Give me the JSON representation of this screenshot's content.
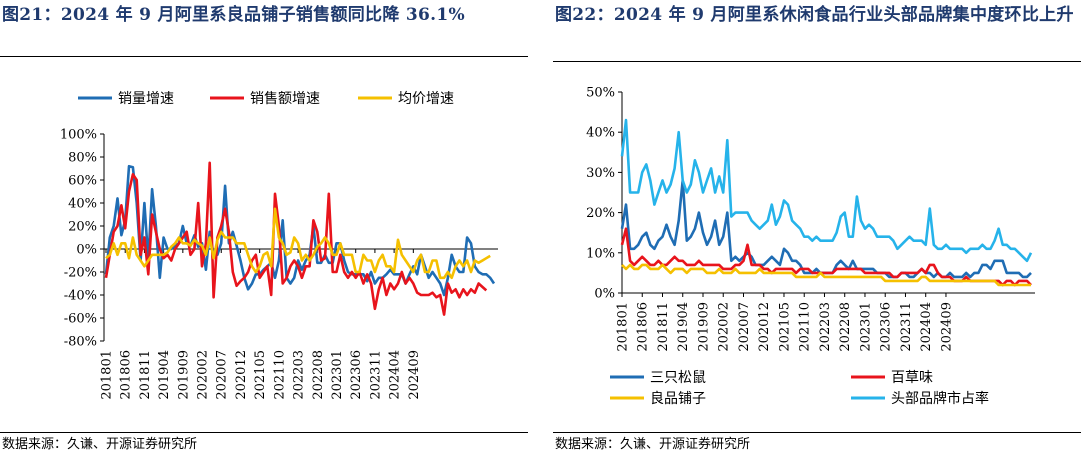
{
  "left": {
    "title": "图21：2024 年 9 月阿里系良品铺子销售额同比降 36.1%",
    "source": "数据来源：久谦、开源证券研究所"
  },
  "right": {
    "title": "图22：2024 年 9 月阿里系休闲食品行业头部品牌集中度环比上升",
    "source": "数据来源：久谦、开源证券研究所"
  },
  "colors": {
    "blue_dark": "#1f6db4",
    "red": "#e8141c",
    "yellow": "#f5c000",
    "light_blue": "#26b3ea"
  },
  "chart_data": [
    {
      "type": "line",
      "title": "2024 年 9 月阿里系良品铺子销售额同比降 36.1%",
      "x_ticks": [
        "201801",
        "201806",
        "201811",
        "201904",
        "201909",
        "202002",
        "202007",
        "202012",
        "202105",
        "202110",
        "202203",
        "202208",
        "202301",
        "202306",
        "202311",
        "202404",
        "202409"
      ],
      "y_ticks": [
        "100%",
        "80%",
        "60%",
        "40%",
        "20%",
        "0%",
        "-20%",
        "-40%",
        "-60%",
        "-80%"
      ],
      "ylim": [
        -80,
        100
      ],
      "y_unit": "%",
      "x_start": "2018-01",
      "x_end": "2024-09",
      "legend_position": "top",
      "grid": false,
      "series": [
        {
          "name": "销量增速",
          "color": "#1f6db4",
          "values": [
            -22,
            10,
            20,
            44,
            12,
            25,
            72,
            71,
            40,
            -10,
            40,
            -10,
            52,
            20,
            -25,
            10,
            0,
            0,
            3,
            5,
            20,
            5,
            3,
            12,
            2,
            5,
            -18,
            15,
            -5,
            -5,
            5,
            55,
            5,
            15,
            3,
            -10,
            -25,
            -35,
            -30,
            -22,
            -22,
            -18,
            -15,
            -12,
            -25,
            -10,
            25,
            -25,
            -30,
            -25,
            -10,
            -18,
            -10,
            -5,
            20,
            -12,
            -12,
            -5,
            -12,
            -12,
            5,
            5,
            -10,
            -20,
            -22,
            -22,
            -22,
            -22,
            -28,
            -20,
            -30,
            -25,
            -25,
            -22,
            -18,
            -22,
            -22,
            -22,
            -30,
            -22,
            -15,
            -22,
            -5,
            -15,
            -25,
            -20,
            -25,
            -30,
            -40,
            -25,
            -5,
            -15,
            -20,
            -20,
            10,
            5,
            -15,
            -20,
            -22,
            -22,
            -25,
            -30
          ]
        },
        {
          "name": "销售额增速",
          "color": "#e8141c",
          "values": [
            -25,
            -5,
            15,
            20,
            38,
            18,
            50,
            65,
            60,
            -5,
            10,
            -22,
            30,
            15,
            0,
            -8,
            -5,
            -10,
            0,
            5,
            10,
            15,
            -5,
            0,
            40,
            -15,
            5,
            75,
            -42,
            10,
            20,
            35,
            15,
            -20,
            -32,
            -28,
            -25,
            -20,
            -10,
            -5,
            -25,
            -20,
            -15,
            -40,
            48,
            20,
            -30,
            -25,
            -15,
            -10,
            -15,
            -25,
            -15,
            -15,
            25,
            15,
            -10,
            -8,
            48,
            -20,
            -20,
            -5,
            -20,
            -25,
            -20,
            -25,
            -20,
            -30,
            -22,
            -30,
            -52,
            -35,
            -25,
            -40,
            -30,
            -35,
            -30,
            -20,
            -30,
            -25,
            -30,
            -38,
            -40,
            -40,
            -40,
            -38,
            -42,
            -40,
            -57,
            -30,
            -38,
            -35,
            -42,
            -35,
            -40,
            -35,
            -38,
            -30,
            -33,
            -36
          ]
        },
        {
          "name": "均价增速",
          "color": "#f5c000",
          "values": [
            -8,
            -5,
            5,
            -5,
            5,
            5,
            -8,
            10,
            -5,
            -10,
            -15,
            -10,
            -5,
            -5,
            -5,
            -5,
            -3,
            2,
            5,
            10,
            5,
            5,
            3,
            8,
            5,
            3,
            -5,
            10,
            -8,
            8,
            15,
            10,
            10,
            10,
            5,
            5,
            5,
            -5,
            -15,
            -20,
            -15,
            -5,
            -3,
            -15,
            35,
            10,
            5,
            -5,
            -3,
            10,
            5,
            -10,
            -5,
            -10,
            -5,
            2,
            5,
            10,
            5,
            -5,
            -5,
            5,
            -5,
            -5,
            -5,
            -20,
            -20,
            -5,
            -10,
            -10,
            -20,
            -10,
            -5,
            -15,
            -15,
            -20,
            8,
            -5,
            -10,
            -15,
            -20,
            -10,
            -5,
            -20,
            -20,
            -10,
            -10,
            -25,
            -25,
            -20,
            -25,
            -15,
            -10,
            -15,
            -10,
            -20,
            -10,
            -12,
            -10,
            -8,
            -6
          ]
        }
      ]
    },
    {
      "type": "line",
      "title": "2024 年 9 月阿里系休闲食品行业头部品牌集中度环比上升",
      "x_ticks": [
        "201801",
        "201806",
        "201811",
        "201904",
        "201909",
        "202002",
        "202007",
        "202012",
        "202105",
        "202110",
        "202203",
        "202208",
        "202301",
        "202306",
        "202311",
        "202404",
        "202409"
      ],
      "y_ticks": [
        "50%",
        "40%",
        "30%",
        "20%",
        "10%",
        "0%"
      ],
      "ylim": [
        0,
        50
      ],
      "y_unit": "%",
      "x_start": "2018-01",
      "x_end": "2024-09",
      "legend_position": "bottom",
      "grid": false,
      "series": [
        {
          "name": "三只松鼠",
          "color": "#1f6db4",
          "values": [
            16,
            22,
            11,
            11,
            12,
            14,
            15,
            12,
            11,
            13,
            14,
            17,
            14,
            12,
            18,
            28,
            13,
            14,
            16,
            20,
            15,
            12,
            14,
            18,
            12,
            14,
            20,
            8,
            9,
            8,
            9,
            10,
            9,
            7,
            7,
            7,
            8,
            9,
            8,
            7,
            11,
            10,
            8,
            8,
            7,
            5,
            5,
            5,
            6,
            5,
            5,
            5,
            5,
            7,
            8,
            7,
            6,
            8,
            6,
            6,
            6,
            6,
            6,
            5,
            5,
            5,
            4,
            4,
            4,
            5,
            5,
            4,
            4,
            5,
            6,
            5,
            5,
            4,
            5,
            4,
            4,
            5,
            4,
            4,
            4,
            5,
            4,
            5,
            5,
            7,
            7,
            6,
            8,
            8,
            8,
            5,
            5,
            5,
            5,
            4,
            4,
            5
          ]
        },
        {
          "name": "百草味",
          "color": "#e8141c",
          "values": [
            12,
            16,
            8,
            7,
            8,
            9,
            8,
            7,
            7,
            8,
            7,
            7,
            8,
            9,
            8,
            8,
            7,
            7,
            7,
            8,
            7,
            7,
            7,
            7,
            7,
            6,
            6,
            6,
            7,
            7,
            8,
            12,
            7,
            7,
            7,
            6,
            6,
            5,
            6,
            6,
            6,
            6,
            6,
            5,
            6,
            6,
            6,
            5,
            5,
            5,
            5,
            5,
            5,
            6,
            6,
            6,
            6,
            6,
            6,
            6,
            5,
            5,
            5,
            5,
            5,
            5,
            5,
            4,
            4,
            5,
            5,
            5,
            5,
            5,
            6,
            5,
            7,
            7,
            5,
            4,
            4,
            4,
            3,
            3,
            3,
            4,
            3,
            3,
            3,
            3,
            3,
            3,
            3,
            3,
            2,
            3,
            3,
            2,
            3,
            3,
            3,
            2
          ]
        },
        {
          "name": "良品铺子",
          "color": "#f5c000",
          "values": [
            7,
            6,
            7,
            6,
            6,
            7,
            7,
            6,
            6,
            6,
            7,
            6,
            5,
            6,
            6,
            6,
            5,
            6,
            6,
            6,
            6,
            5,
            5,
            5,
            6,
            5,
            5,
            5,
            6,
            5,
            5,
            5,
            5,
            5,
            6,
            5,
            5,
            5,
            5,
            5,
            5,
            5,
            5,
            4,
            4,
            4,
            4,
            4,
            4,
            5,
            4,
            4,
            4,
            4,
            4,
            4,
            4,
            4,
            4,
            4,
            4,
            4,
            4,
            4,
            4,
            3,
            3,
            3,
            3,
            3,
            3,
            3,
            3,
            3,
            4,
            4,
            3,
            3,
            3,
            3,
            3,
            3,
            3,
            3,
            3,
            3,
            3,
            3,
            3,
            3,
            3,
            3,
            3,
            2,
            2,
            2,
            2,
            2,
            2,
            2,
            2,
            2
          ]
        },
        {
          "name": "头部品牌市占率",
          "color": "#26b3ea",
          "values": [
            34,
            43,
            25,
            25,
            25,
            30,
            32,
            28,
            22,
            25,
            28,
            25,
            27,
            31,
            40,
            28,
            25,
            27,
            33,
            30,
            25,
            28,
            31,
            25,
            29,
            25,
            38,
            19,
            20,
            20,
            20,
            20,
            18,
            17,
            16,
            17,
            18,
            22,
            17,
            19,
            23,
            22,
            18,
            17,
            16,
            14,
            14,
            13,
            14,
            13,
            13,
            13,
            13,
            15,
            19,
            20,
            14,
            14,
            24,
            18,
            16,
            17,
            16,
            14,
            14,
            14,
            14,
            13,
            11,
            12,
            13,
            14,
            13,
            13,
            13,
            12,
            21,
            12,
            11,
            11,
            12,
            11,
            11,
            11,
            11,
            10,
            11,
            11,
            11,
            12,
            11,
            11,
            13,
            16,
            12,
            12,
            11,
            11,
            10,
            9,
            8,
            10
          ]
        }
      ]
    }
  ]
}
